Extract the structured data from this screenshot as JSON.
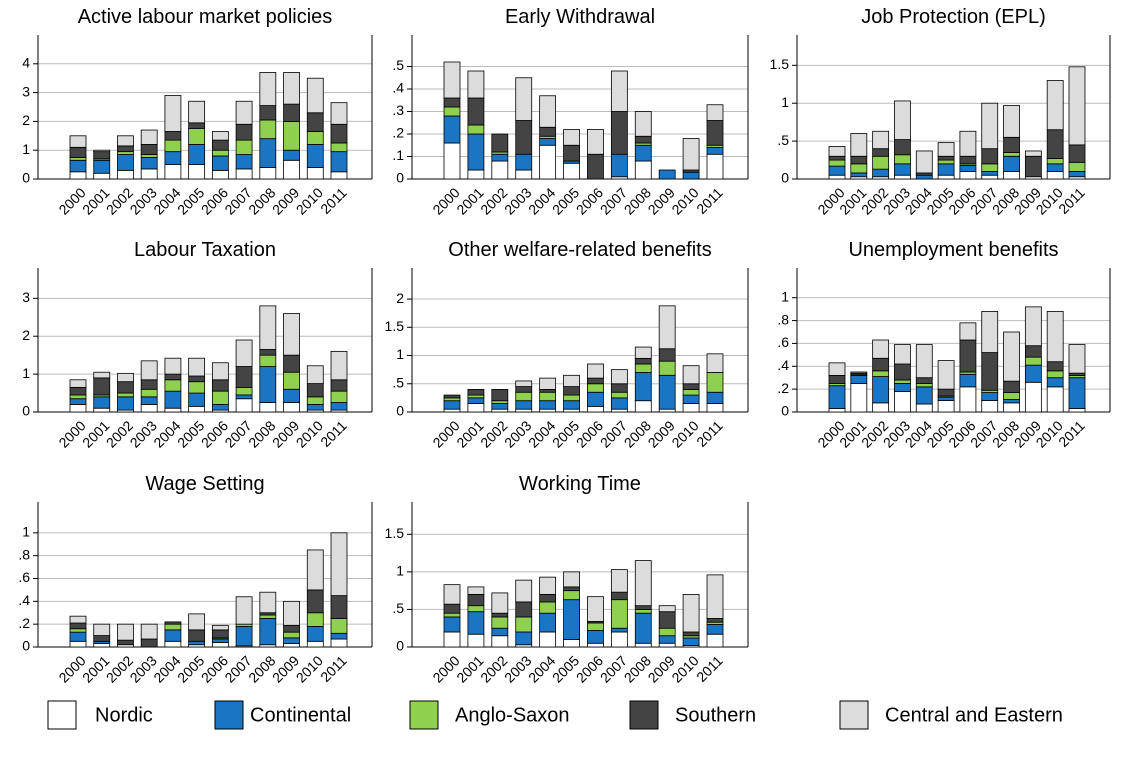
{
  "chart_data": [
    {
      "type": "bar",
      "stacked": true,
      "title": "Active labour market policies",
      "categories": [
        "2000",
        "2001",
        "2002",
        "2003",
        "2004",
        "2005",
        "2006",
        "2007",
        "2008",
        "2009",
        "2010",
        "2011"
      ],
      "ylim": [
        0,
        5
      ],
      "yticks": [
        0,
        1,
        2,
        3,
        4
      ],
      "grid": true,
      "series": [
        {
          "name": "Nordic",
          "color": "#ffffff",
          "values": [
            0.25,
            0.2,
            0.3,
            0.35,
            0.5,
            0.5,
            0.3,
            0.35,
            0.4,
            0.65,
            0.4,
            0.25
          ]
        },
        {
          "name": "Continental",
          "color": "#1a75c4",
          "values": [
            0.4,
            0.45,
            0.55,
            0.4,
            0.45,
            0.7,
            0.5,
            0.5,
            1.0,
            0.35,
            0.8,
            0.7
          ]
        },
        {
          "name": "Anglo-Saxon",
          "color": "#8fd14f",
          "values": [
            0.1,
            0.05,
            0.1,
            0.1,
            0.4,
            0.55,
            0.2,
            0.5,
            0.65,
            1.0,
            0.45,
            0.3
          ]
        },
        {
          "name": "Southern",
          "color": "#444444",
          "values": [
            0.35,
            0.25,
            0.2,
            0.35,
            0.3,
            0.2,
            0.35,
            0.55,
            0.5,
            0.6,
            0.65,
            0.65
          ]
        },
        {
          "name": "Central and Eastern",
          "color": "#dcdcdc",
          "values": [
            0.4,
            0.05,
            0.35,
            0.5,
            1.25,
            0.75,
            0.3,
            0.8,
            1.15,
            1.1,
            1.2,
            0.75
          ]
        }
      ]
    },
    {
      "type": "bar",
      "stacked": true,
      "title": "Early Withdrawal",
      "categories": [
        "2000",
        "2001",
        "2002",
        "2003",
        "2004",
        "2005",
        "2006",
        "2007",
        "2008",
        "2009",
        "2010",
        "2011"
      ],
      "ylim": [
        0,
        0.64
      ],
      "yticks": [
        0,
        {
          "value": 0.1,
          "label": ".1"
        },
        {
          "value": 0.2,
          "label": ".2"
        },
        {
          "value": 0.3,
          "label": ".3"
        },
        {
          "value": 0.4,
          "label": ".4"
        },
        {
          "value": 0.5,
          "label": ".5"
        }
      ],
      "grid": true,
      "series": [
        {
          "values": [
            0.16,
            0.04,
            0.08,
            0.04,
            0.15,
            0.07,
            0,
            0.01,
            0.08,
            0,
            0,
            0.11
          ]
        },
        {
          "values": [
            0.12,
            0.16,
            0.03,
            0.07,
            0.03,
            0.01,
            0,
            0.1,
            0.07,
            0.04,
            0.03,
            0.03
          ]
        },
        {
          "values": [
            0.04,
            0.04,
            0.01,
            0,
            0.01,
            0,
            0,
            0,
            0.01,
            0,
            0,
            0.01
          ]
        },
        {
          "values": [
            0.04,
            0.12,
            0.08,
            0.15,
            0.04,
            0.07,
            0.11,
            0.19,
            0.03,
            0,
            0.01,
            0.11
          ]
        },
        {
          "values": [
            0.16,
            0.12,
            0,
            0.19,
            0.14,
            0.07,
            0.11,
            0.18,
            0.11,
            0,
            0.14,
            0.07
          ]
        }
      ]
    },
    {
      "type": "bar",
      "stacked": true,
      "title": "Job Protection (EPL)",
      "categories": [
        "2000",
        "2001",
        "2002",
        "2003",
        "2004",
        "2005",
        "2006",
        "2007",
        "2008",
        "2009",
        "2010",
        "2011"
      ],
      "ylim": [
        0,
        1.9
      ],
      "yticks": [
        0,
        {
          "value": 0.5,
          "label": ".5"
        },
        1,
        1.5
      ],
      "grid": true,
      "series": [
        {
          "values": [
            0.05,
            0.03,
            0.03,
            0.05,
            0,
            0.05,
            0.1,
            0.05,
            0.1,
            0.03,
            0.1,
            0.03
          ]
        },
        {
          "values": [
            0.12,
            0.05,
            0.1,
            0.15,
            0.05,
            0.15,
            0.08,
            0.05,
            0.2,
            0,
            0.1,
            0.07
          ]
        },
        {
          "values": [
            0.08,
            0.12,
            0.17,
            0.12,
            0,
            0.05,
            0.02,
            0.1,
            0.05,
            0,
            0.07,
            0.12
          ]
        },
        {
          "values": [
            0.05,
            0.1,
            0.1,
            0.2,
            0.03,
            0.05,
            0.1,
            0.2,
            0.2,
            0.27,
            0.38,
            0.23
          ]
        },
        {
          "values": [
            0.13,
            0.3,
            0.23,
            0.51,
            0.29,
            0.18,
            0.33,
            0.6,
            0.42,
            0.07,
            0.65,
            1.03
          ]
        }
      ]
    },
    {
      "type": "bar",
      "stacked": true,
      "title": "Labour Taxation",
      "categories": [
        "2000",
        "2001",
        "2002",
        "2003",
        "2004",
        "2005",
        "2006",
        "2007",
        "2008",
        "2009",
        "2010",
        "2011"
      ],
      "ylim": [
        0,
        3.8
      ],
      "yticks": [
        0,
        1,
        2,
        3
      ],
      "grid": true,
      "series": [
        {
          "values": [
            0.2,
            0.1,
            0.05,
            0.2,
            0.1,
            0.15,
            0.05,
            0.35,
            0.25,
            0.25,
            0.05,
            0.05
          ]
        },
        {
          "values": [
            0.15,
            0.3,
            0.35,
            0.2,
            0.45,
            0.35,
            0.15,
            0.1,
            0.95,
            0.35,
            0.15,
            0.2
          ]
        },
        {
          "values": [
            0.1,
            0.05,
            0.1,
            0.2,
            0.3,
            0.3,
            0.35,
            0.2,
            0.3,
            0.45,
            0.2,
            0.3
          ]
        },
        {
          "values": [
            0.2,
            0.45,
            0.3,
            0.25,
            0.15,
            0.15,
            0.3,
            0.55,
            0.15,
            0.45,
            0.35,
            0.3
          ]
        },
        {
          "values": [
            0.2,
            0.15,
            0.22,
            0.5,
            0.42,
            0.47,
            0.45,
            0.7,
            1.15,
            1.1,
            0.47,
            0.75
          ]
        }
      ]
    },
    {
      "type": "bar",
      "stacked": true,
      "title": "Other welfare-related benefits",
      "categories": [
        "2000",
        "2001",
        "2002",
        "2003",
        "2004",
        "2005",
        "2006",
        "2007",
        "2008",
        "2009",
        "2010",
        "2011"
      ],
      "ylim": [
        0,
        2.55
      ],
      "yticks": [
        0,
        {
          "value": 0.5,
          "label": ".5"
        },
        1,
        1.5,
        2
      ],
      "grid": true,
      "series": [
        {
          "values": [
            0.05,
            0.15,
            0.05,
            0.05,
            0.05,
            0.05,
            0.1,
            0.05,
            0.2,
            0.05,
            0.15,
            0.15
          ]
        },
        {
          "values": [
            0.15,
            0.1,
            0.1,
            0.15,
            0.15,
            0.15,
            0.25,
            0.2,
            0.5,
            0.6,
            0.15,
            0.2
          ]
        },
        {
          "values": [
            0.05,
            0.05,
            0.05,
            0.15,
            0.15,
            0.1,
            0.15,
            0.1,
            0.15,
            0.25,
            0.1,
            0.35
          ]
        },
        {
          "values": [
            0.05,
            0.1,
            0.2,
            0.1,
            0.05,
            0.15,
            0.1,
            0.15,
            0.1,
            0.22,
            0.1,
            0
          ]
        },
        {
          "values": [
            0,
            0,
            0,
            0.1,
            0.2,
            0.2,
            0.25,
            0.25,
            0.2,
            0.76,
            0.32,
            0.33
          ]
        }
      ]
    },
    {
      "type": "bar",
      "stacked": true,
      "title": "Unemployment benefits",
      "categories": [
        "2000",
        "2001",
        "2002",
        "2003",
        "2004",
        "2005",
        "2006",
        "2007",
        "2008",
        "2009",
        "2010",
        "2011"
      ],
      "ylim": [
        0,
        1.26
      ],
      "yticks": [
        0,
        {
          "value": 0.2,
          "label": ".2"
        },
        {
          "value": 0.4,
          "label": ".4"
        },
        {
          "value": 0.6,
          "label": ".6"
        },
        {
          "value": 0.8,
          "label": ".8"
        },
        1
      ],
      "grid": true,
      "series": [
        {
          "values": [
            0.03,
            0.25,
            0.08,
            0.18,
            0.07,
            0.1,
            0.22,
            0.1,
            0.08,
            0.26,
            0.22,
            0.03
          ]
        },
        {
          "values": [
            0.2,
            0.07,
            0.23,
            0.07,
            0.15,
            0.03,
            0.11,
            0.07,
            0.03,
            0.15,
            0.08,
            0.27
          ]
        },
        {
          "values": [
            0.02,
            0.01,
            0.05,
            0.03,
            0.03,
            0.01,
            0.02,
            0.02,
            0.06,
            0.07,
            0.06,
            0.02
          ]
        },
        {
          "values": [
            0.07,
            0.01,
            0.11,
            0.14,
            0.05,
            0.06,
            0.28,
            0.33,
            0.1,
            0.1,
            0.08,
            0.02
          ]
        },
        {
          "values": [
            0.11,
            0.01,
            0.16,
            0.17,
            0.29,
            0.25,
            0.15,
            0.36,
            0.43,
            0.34,
            0.44,
            0.25
          ]
        }
      ]
    },
    {
      "type": "bar",
      "stacked": true,
      "title": "Wage Setting",
      "categories": [
        "2000",
        "2001",
        "2002",
        "2003",
        "2004",
        "2005",
        "2006",
        "2007",
        "2008",
        "2009",
        "2010",
        "2011"
      ],
      "ylim": [
        0,
        1.27
      ],
      "yticks": [
        0,
        {
          "value": 0.2,
          "label": ".2"
        },
        {
          "value": 0.4,
          "label": ".4"
        },
        {
          "value": 0.6,
          "label": ".6"
        },
        {
          "value": 0.8,
          "label": ".8"
        },
        1
      ],
      "grid": true,
      "series": [
        {
          "values": [
            0.05,
            0.03,
            0.02,
            0,
            0.05,
            0.02,
            0.04,
            0.01,
            0.02,
            0.03,
            0.05,
            0.07
          ]
        },
        {
          "values": [
            0.08,
            0.02,
            0,
            0,
            0.1,
            0.03,
            0.03,
            0.17,
            0.23,
            0.05,
            0.13,
            0.05
          ]
        },
        {
          "values": [
            0.03,
            0,
            0,
            0,
            0.05,
            0,
            0.01,
            0.02,
            0.03,
            0.05,
            0.12,
            0.13
          ]
        },
        {
          "values": [
            0.05,
            0.05,
            0.04,
            0.07,
            0.02,
            0.1,
            0.07,
            0,
            0.02,
            0.06,
            0.2,
            0.2
          ]
        },
        {
          "values": [
            0.06,
            0.1,
            0.14,
            0.13,
            0,
            0.14,
            0.04,
            0.24,
            0.18,
            0.21,
            0.35,
            0.55
          ]
        }
      ]
    },
    {
      "type": "bar",
      "stacked": true,
      "title": "Working Time",
      "categories": [
        "2000",
        "2001",
        "2002",
        "2003",
        "2004",
        "2005",
        "2006",
        "2007",
        "2008",
        "2009",
        "2010",
        "2011"
      ],
      "ylim": [
        0,
        1.93
      ],
      "yticks": [
        0,
        {
          "value": 0.5,
          "label": ".5"
        },
        1,
        1.5
      ],
      "grid": true,
      "series": [
        {
          "values": [
            0.2,
            0.17,
            0.15,
            0.03,
            0.2,
            0.1,
            0.05,
            0.2,
            0.05,
            0.05,
            0.02,
            0.17
          ]
        },
        {
          "values": [
            0.2,
            0.3,
            0.1,
            0.17,
            0.25,
            0.53,
            0.17,
            0.05,
            0.4,
            0.1,
            0.1,
            0.13
          ]
        },
        {
          "values": [
            0.05,
            0.08,
            0.15,
            0.2,
            0.15,
            0.12,
            0.1,
            0.38,
            0.05,
            0.1,
            0.03,
            0.03
          ]
        },
        {
          "values": [
            0.12,
            0.15,
            0.05,
            0.2,
            0.1,
            0.05,
            0.02,
            0.1,
            0.05,
            0.22,
            0.05,
            0.05
          ]
        },
        {
          "values": [
            0.26,
            0.1,
            0.27,
            0.29,
            0.23,
            0.2,
            0.33,
            0.3,
            0.6,
            0.08,
            0.5,
            0.58
          ]
        }
      ]
    }
  ]
}
